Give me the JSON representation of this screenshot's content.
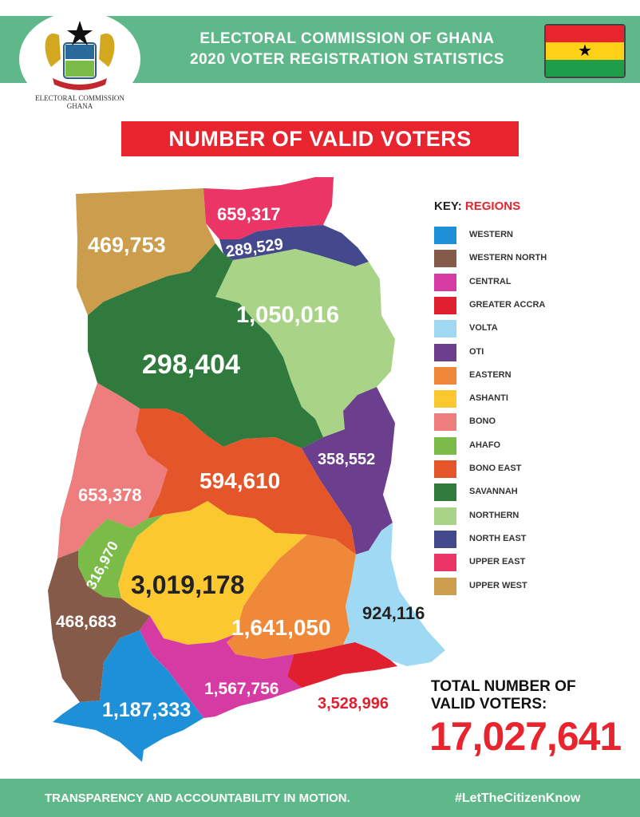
{
  "header": {
    "title_line1": "ELECTORAL COMMISSION OF GHANA",
    "title_line2": "2020 VOTER REGISTRATION STATISTICS"
  },
  "logo": {
    "caption_line1": "ELECTORAL COMMISSION",
    "caption_line2": "GHANA"
  },
  "banner": {
    "text": "NUMBER OF VALID VOTERS"
  },
  "key": {
    "title_prefix": "KEY:",
    "title_accent": "REGIONS",
    "items": [
      {
        "label": "WESTERN",
        "color": "#1e90d8"
      },
      {
        "label": "WESTERN NORTH",
        "color": "#865a48"
      },
      {
        "label": "CENTRAL",
        "color": "#d63aa3"
      },
      {
        "label": "GREATER ACCRA",
        "color": "#e0202f"
      },
      {
        "label": "VOLTA",
        "color": "#9fd9f3"
      },
      {
        "label": "OTI",
        "color": "#6c3f8e"
      },
      {
        "label": "EASTERN",
        "color": "#f0883a"
      },
      {
        "label": "ASHANTI",
        "color": "#fbc830"
      },
      {
        "label": "BONO",
        "color": "#ee7d7d"
      },
      {
        "label": "AHAFO",
        "color": "#7bbb48"
      },
      {
        "label": "BONO EAST",
        "color": "#e4552a"
      },
      {
        "label": "SAVANNAH",
        "color": "#2f7a3c"
      },
      {
        "label": "NORTHERN",
        "color": "#a9d487"
      },
      {
        "label": "NORTH EAST",
        "color": "#44498d"
      },
      {
        "label": "UPPER EAST",
        "color": "#ea3566"
      },
      {
        "label": "UPPER WEST",
        "color": "#cb9d4c"
      }
    ]
  },
  "regions": {
    "upper_west": "469,753",
    "upper_east": "659,317",
    "north_east": "289,529",
    "northern": "1,050,016",
    "savannah": "298,404",
    "oti": "358,552",
    "bono": "653,378",
    "bono_east": "594,610",
    "ahafo": "316,970",
    "ashanti": "3,019,178",
    "western_north": "468,683",
    "eastern": "1,641,050",
    "volta": "924,116",
    "western": "1,187,333",
    "central": "1,567,756",
    "greater_accra": "3,528,996"
  },
  "total": {
    "label_line1": "TOTAL NUMBER OF",
    "label_line2": "VALID VOTERS:",
    "value": "17,027,641"
  },
  "footer": {
    "left": "TRANSPARENCY AND ACCOUNTABILITY IN MOTION.",
    "right": "#LetTheCitizenKnow"
  },
  "flag": {
    "colors": [
      "#e8252e",
      "#fcd116",
      "#1e9e4a"
    ],
    "star": "★"
  }
}
